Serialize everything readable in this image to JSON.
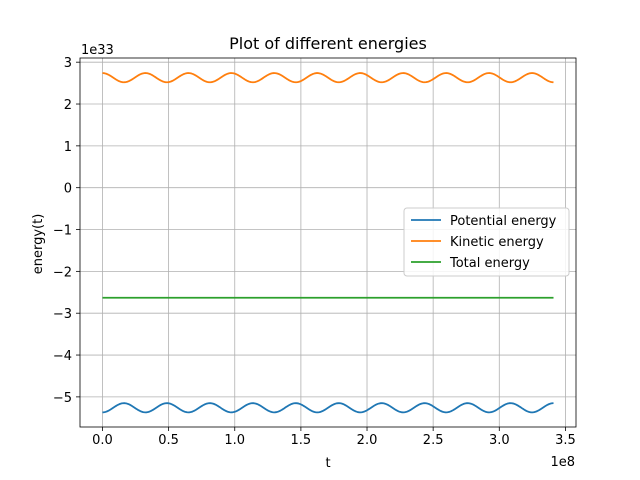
{
  "chart_data": {
    "type": "line",
    "title": "Plot of different energies",
    "xlabel": "t",
    "ylabel": "energy(t)",
    "x_offset_text": "1e8",
    "y_offset_text": "1e33",
    "x_scale": 100000000,
    "y_scale": 1e+33,
    "xlim": [
      -17000000,
      358000000
    ],
    "ylim": [
      -5.72e+33,
      3.1e+33
    ],
    "x_ticks": [
      0,
      50000000,
      100000000,
      150000000,
      200000000,
      250000000,
      300000000,
      350000000
    ],
    "x_tick_labels": [
      "0.0",
      "0.5",
      "1.0",
      "1.5",
      "2.0",
      "2.5",
      "3.0",
      "3.5"
    ],
    "y_ticks": [
      3e+33,
      2e+33,
      1e+33,
      0,
      -1e+33,
      -2e+33,
      -3e+33,
      -4e+33,
      -5e+33
    ],
    "y_tick_labels": [
      "3",
      "2",
      "1",
      "0",
      "−1",
      "−2",
      "−3",
      "−4",
      "−5"
    ],
    "grid": true,
    "legend_position": "center-right",
    "x_range": [
      0,
      341000000
    ],
    "oscillation": {
      "cycles": 10.5,
      "sample_count": 400
    },
    "series": [
      {
        "name": "Potential energy",
        "color": "#1f77b4",
        "mean": -5.26e+33,
        "amplitude": 1.1e+32,
        "phase": "min_at_start"
      },
      {
        "name": "Kinetic energy",
        "color": "#ff7f0e",
        "mean": 2.63e+33,
        "amplitude": 1.1e+32,
        "phase": "max_at_start"
      },
      {
        "name": "Total energy",
        "color": "#2ca02c",
        "mean": -2.63e+33,
        "amplitude": 0,
        "phase": "flat"
      }
    ]
  }
}
